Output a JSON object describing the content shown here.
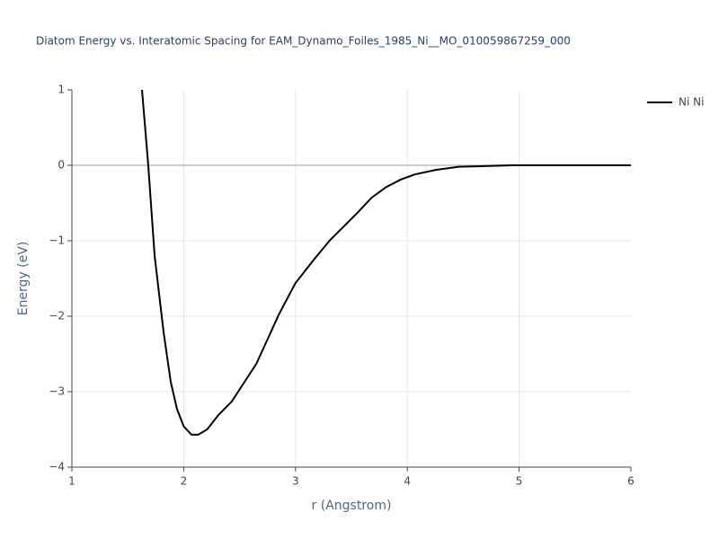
{
  "chart_data": {
    "type": "line",
    "title": "Diatom Energy vs. Interatomic Spacing for EAM_Dynamo_Foiles_1985_Ni__MO_010059867259_000",
    "x_label": "r (Angstrom)",
    "y_label": "Energy (eV)",
    "x": [
      1.627,
      1.683,
      1.74,
      1.82,
      1.884,
      1.94,
      2.0,
      2.07,
      2.13,
      2.21,
      2.31,
      2.43,
      2.65,
      2.85,
      3.0,
      3.17,
      3.31,
      3.56,
      3.68,
      3.81,
      3.94,
      4.07,
      4.26,
      4.46,
      4.7,
      4.94,
      6.0
    ],
    "series": [
      {
        "name": "Ni Ni",
        "color": "#000000",
        "values": [
          1.0,
          0.0,
          -1.2,
          -2.21,
          -2.87,
          -3.23,
          -3.46,
          -3.57,
          -3.57,
          -3.5,
          -3.31,
          -3.13,
          -2.63,
          -1.98,
          -1.56,
          -1.24,
          -0.99,
          -0.62,
          -0.43,
          -0.29,
          -0.19,
          -0.12,
          -0.06,
          -0.02,
          -0.01,
          0.0,
          0.0
        ]
      }
    ],
    "xlim": [
      1,
      6
    ],
    "ylim": [
      -4,
      1
    ],
    "xticks": [
      1,
      2,
      3,
      4,
      5,
      6
    ],
    "yticks": [
      {
        "value": -4,
        "label": "−4"
      },
      {
        "value": -3,
        "label": "−3"
      },
      {
        "value": -2,
        "label": "−2"
      },
      {
        "value": -1,
        "label": "−1"
      },
      0,
      1
    ],
    "grid": true
  }
}
